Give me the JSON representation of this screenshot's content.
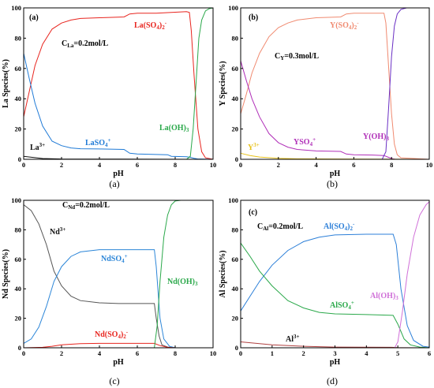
{
  "chart_data": [
    {
      "type": "line",
      "panel_label": "(a)",
      "caption": "(a)",
      "xlabel": "pH",
      "ylabel": "La Species(%)",
      "xlim": [
        0,
        10
      ],
      "ylim": [
        0,
        100
      ],
      "xticks": [
        "0",
        "2",
        "4",
        "6",
        "8",
        "10"
      ],
      "yticks": [
        "0",
        "20",
        "40",
        "60",
        "80",
        "100"
      ],
      "concentration": "CLa=0.2mol/L",
      "series": [
        {
          "name": "La(SO4)2-",
          "label": "La(SO₄)₂⁻",
          "color": "#e8251f",
          "points": [
            [
              0,
              28
            ],
            [
              0.3,
              45
            ],
            [
              0.6,
              62
            ],
            [
              1,
              76
            ],
            [
              1.5,
              86
            ],
            [
              2,
              90
            ],
            [
              2.5,
              92
            ],
            [
              3,
              93
            ],
            [
              4,
              93.5
            ],
            [
              5.3,
              94
            ],
            [
              5.6,
              96
            ],
            [
              6,
              96.5
            ],
            [
              7,
              96.5
            ],
            [
              7.8,
              97
            ],
            [
              8.6,
              97.5
            ],
            [
              8.75,
              97
            ],
            [
              8.85,
              85
            ],
            [
              9,
              55
            ],
            [
              9.2,
              20
            ],
            [
              9.4,
              5
            ],
            [
              9.6,
              1
            ],
            [
              10,
              0
            ]
          ]
        },
        {
          "name": "LaSO4+",
          "label": "LaSO₄⁺",
          "color": "#1f7ad6",
          "points": [
            [
              0,
              70
            ],
            [
              0.3,
              53
            ],
            [
              0.6,
              37
            ],
            [
              1,
              22
            ],
            [
              1.5,
              12
            ],
            [
              2,
              9
            ],
            [
              2.5,
              7.5
            ],
            [
              3,
              7
            ],
            [
              4,
              6.8
            ],
            [
              5.3,
              6.5
            ],
            [
              5.6,
              4
            ],
            [
              6,
              3.5
            ],
            [
              7,
              3.2
            ],
            [
              7.6,
              3
            ],
            [
              7.8,
              2
            ],
            [
              8.6,
              1.7
            ],
            [
              8.8,
              1.3
            ],
            [
              9,
              0.7
            ],
            [
              9.2,
              0.2
            ],
            [
              10,
              0
            ]
          ]
        },
        {
          "name": "La3+",
          "label": "La³⁺",
          "color": "#111111",
          "points": [
            [
              0,
              2
            ],
            [
              1,
              0.5
            ],
            [
              2,
              0.2
            ],
            [
              5,
              0.1
            ],
            [
              10,
              0
            ]
          ]
        },
        {
          "name": "La(OH)3",
          "label": "La(OH)₃",
          "color": "#2aa84a",
          "points": [
            [
              0,
              0
            ],
            [
              8.6,
              0
            ],
            [
              8.8,
              2
            ],
            [
              8.95,
              20
            ],
            [
              9.1,
              50
            ],
            [
              9.25,
              80
            ],
            [
              9.4,
              92
            ],
            [
              9.6,
              98
            ],
            [
              9.8,
              99.5
            ],
            [
              10,
              100
            ]
          ]
        }
      ]
    },
    {
      "type": "line",
      "panel_label": "(b)",
      "caption": "(b)",
      "xlabel": "pH",
      "ylabel": "Y Species(%)",
      "xlim": [
        0,
        10
      ],
      "ylim": [
        0,
        100
      ],
      "xticks": [
        "0",
        "2",
        "4",
        "6",
        "8",
        "10"
      ],
      "yticks": [
        "0",
        "20",
        "40",
        "60",
        "80",
        "100"
      ],
      "concentration": "CY=0.3mol/L",
      "series": [
        {
          "name": "Y(SO4)2-",
          "label": "Y(SO₄)₂⁻",
          "color": "#f08a70",
          "points": [
            [
              0,
              30
            ],
            [
              0.3,
              43
            ],
            [
              0.6,
              57
            ],
            [
              1,
              70
            ],
            [
              1.5,
              81
            ],
            [
              2,
              87
            ],
            [
              2.5,
              90
            ],
            [
              3,
              92
            ],
            [
              4,
              93.5
            ],
            [
              5.3,
              94
            ],
            [
              5.6,
              96
            ],
            [
              6,
              96.5
            ],
            [
              7,
              96.5
            ],
            [
              7.6,
              96.5
            ],
            [
              7.7,
              90
            ],
            [
              7.85,
              60
            ],
            [
              8,
              30
            ],
            [
              8.15,
              10
            ],
            [
              8.3,
              3
            ],
            [
              8.5,
              1
            ],
            [
              10,
              0
            ]
          ]
        },
        {
          "name": "YSO4+",
          "label": "YSO₄⁺",
          "color": "#b02fb8",
          "points": [
            [
              0,
              65
            ],
            [
              0.3,
              52
            ],
            [
              0.6,
              40
            ],
            [
              1,
              28
            ],
            [
              1.5,
              17
            ],
            [
              2,
              11
            ],
            [
              2.5,
              8
            ],
            [
              3,
              6.5
            ],
            [
              4,
              5.5
            ],
            [
              5.3,
              5.2
            ],
            [
              5.6,
              3.5
            ],
            [
              6,
              3
            ],
            [
              7,
              2.8
            ],
            [
              7.6,
              2.5
            ],
            [
              7.8,
              1.5
            ],
            [
              8,
              0.5
            ],
            [
              8.2,
              0
            ],
            [
              10,
              0
            ]
          ]
        },
        {
          "name": "Y3+",
          "label": "Y³⁺",
          "color": "#e8c21c",
          "points": [
            [
              0,
              4
            ],
            [
              0.5,
              2.5
            ],
            [
              1,
              1.5
            ],
            [
              2,
              0.6
            ],
            [
              3,
              0.3
            ],
            [
              5,
              0.2
            ],
            [
              10,
              0
            ]
          ]
        },
        {
          "name": "Y(OH)3",
          "label": "Y(OH)₃",
          "color": "#6a2fc4",
          "points": [
            [
              0,
              0
            ],
            [
              7.5,
              0
            ],
            [
              7.7,
              5
            ],
            [
              7.85,
              35
            ],
            [
              8,
              68
            ],
            [
              8.15,
              88
            ],
            [
              8.3,
              96
            ],
            [
              8.5,
              99
            ],
            [
              8.8,
              100
            ],
            [
              10,
              100
            ]
          ]
        }
      ]
    },
    {
      "type": "line",
      "panel_label": "",
      "caption": "(c)",
      "xlabel": "pH",
      "ylabel": "Nd Species(%)",
      "xlim": [
        0,
        10
      ],
      "ylim": [
        0,
        100
      ],
      "xticks": [
        "0",
        "2",
        "4",
        "6",
        "8",
        "10"
      ],
      "yticks": [
        "0",
        "20",
        "40",
        "60",
        "80",
        "100"
      ],
      "concentration": "CNd=0.2mol/L",
      "series": [
        {
          "name": "Nd3+",
          "label": "Nd³⁺",
          "color": "#555555",
          "points": [
            [
              0,
              97
            ],
            [
              0.4,
              93
            ],
            [
              0.8,
              84
            ],
            [
              1.2,
              70
            ],
            [
              1.6,
              52
            ],
            [
              2,
              42
            ],
            [
              2.5,
              35
            ],
            [
              3,
              32
            ],
            [
              4,
              30.5
            ],
            [
              5,
              30
            ],
            [
              6,
              30
            ],
            [
              6.9,
              30
            ],
            [
              7,
              20
            ],
            [
              7.15,
              8
            ],
            [
              7.3,
              2
            ],
            [
              7.6,
              0.5
            ],
            [
              8,
              0
            ],
            [
              10,
              0
            ]
          ]
        },
        {
          "name": "NdSO4+",
          "label": "NdSO₄⁺",
          "color": "#2c86d8",
          "points": [
            [
              0,
              3
            ],
            [
              0.4,
              6
            ],
            [
              0.8,
              14
            ],
            [
              1.2,
              28
            ],
            [
              1.6,
              45
            ],
            [
              2,
              55
            ],
            [
              2.5,
              62
            ],
            [
              3,
              65
            ],
            [
              4,
              66.5
            ],
            [
              5,
              66.5
            ],
            [
              6,
              66.5
            ],
            [
              6.9,
              66.5
            ],
            [
              7,
              55
            ],
            [
              7.2,
              20
            ],
            [
              7.4,
              6
            ],
            [
              7.7,
              1
            ],
            [
              8,
              0
            ],
            [
              10,
              0
            ]
          ]
        },
        {
          "name": "Nd(SO4)2-",
          "label": "Nd(SO₄)₂⁻",
          "color": "#e8251f",
          "points": [
            [
              0,
              0
            ],
            [
              1,
              0.3
            ],
            [
              1.5,
              1
            ],
            [
              2,
              2
            ],
            [
              3,
              2.8
            ],
            [
              4,
              3
            ],
            [
              6,
              3
            ],
            [
              6.9,
              3
            ],
            [
              7.2,
              1.5
            ],
            [
              7.6,
              0.3
            ],
            [
              8,
              0
            ],
            [
              10,
              0
            ]
          ]
        },
        {
          "name": "Nd(OH)3",
          "label": "Nd(OH)₃",
          "color": "#2aa84a",
          "points": [
            [
              0,
              0
            ],
            [
              6.9,
              0
            ],
            [
              7.05,
              15
            ],
            [
              7.2,
              45
            ],
            [
              7.4,
              75
            ],
            [
              7.6,
              90
            ],
            [
              7.8,
              97
            ],
            [
              8,
              99.5
            ],
            [
              8.3,
              100
            ],
            [
              10,
              100
            ]
          ]
        }
      ]
    },
    {
      "type": "line",
      "panel_label": "(c)",
      "caption": "(d)",
      "xlabel": "pH",
      "ylabel": "Al Species(%)",
      "xlim": [
        0,
        6
      ],
      "ylim": [
        0,
        100
      ],
      "xticks": [
        "0",
        "1",
        "2",
        "3",
        "4",
        "5",
        "6"
      ],
      "yticks": [
        "0",
        "20",
        "40",
        "60",
        "80",
        "100"
      ],
      "concentration": "CAl=0.2mol/L",
      "series": [
        {
          "name": "Al(SO4)2-",
          "label": "Al(SO₄)₂⁻",
          "color": "#2c7fd8",
          "points": [
            [
              0,
              25
            ],
            [
              0.3,
              35
            ],
            [
              0.6,
              45
            ],
            [
              1,
              56
            ],
            [
              1.5,
              66
            ],
            [
              2,
              72
            ],
            [
              2.5,
              75
            ],
            [
              3,
              76.5
            ],
            [
              4,
              77
            ],
            [
              4.85,
              77
            ],
            [
              4.95,
              70
            ],
            [
              5.1,
              40
            ],
            [
              5.3,
              15
            ],
            [
              5.5,
              5
            ],
            [
              5.8,
              1
            ],
            [
              6,
              0.5
            ]
          ]
        },
        {
          "name": "AlSO4+",
          "label": "AlSO₄⁺",
          "color": "#2aa84a",
          "points": [
            [
              0,
              71
            ],
            [
              0.3,
              62
            ],
            [
              0.6,
              52
            ],
            [
              1,
              42
            ],
            [
              1.5,
              32
            ],
            [
              2,
              27
            ],
            [
              2.5,
              24
            ],
            [
              3,
              23
            ],
            [
              4,
              22.5
            ],
            [
              4.85,
              22
            ],
            [
              5,
              16
            ],
            [
              5.2,
              6
            ],
            [
              5.4,
              2
            ],
            [
              5.7,
              0.5
            ],
            [
              6,
              0
            ]
          ]
        },
        {
          "name": "Al3+",
          "label": "Al³⁺",
          "color": "#b04040",
          "points": [
            [
              0,
              4
            ],
            [
              1,
              2
            ],
            [
              2,
              1
            ],
            [
              3,
              0.5
            ],
            [
              4.8,
              0.3
            ],
            [
              5,
              0.1
            ],
            [
              6,
              0
            ]
          ]
        },
        {
          "name": "Al(OH)3",
          "label": "Al(OH)₃",
          "color": "#d070d8",
          "points": [
            [
              0,
              0
            ],
            [
              4.9,
              0
            ],
            [
              5,
              4
            ],
            [
              5.15,
              25
            ],
            [
              5.3,
              50
            ],
            [
              5.5,
              75
            ],
            [
              5.7,
              90
            ],
            [
              5.9,
              97
            ],
            [
              6,
              99
            ]
          ]
        }
      ]
    }
  ]
}
